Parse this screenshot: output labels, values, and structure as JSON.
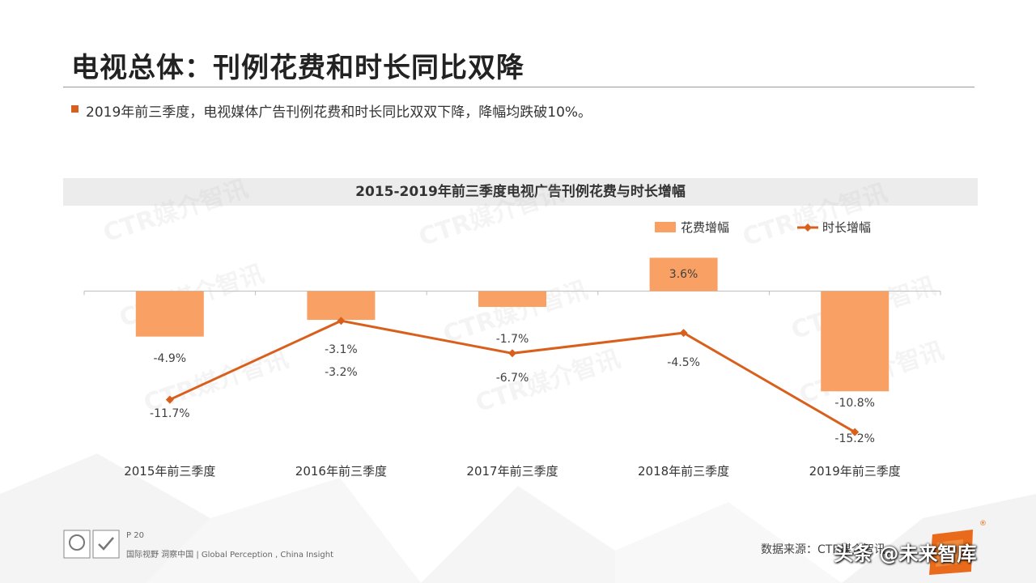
{
  "page": {
    "title": "电视总体：刊例花费和时长同比双降",
    "bullet": "2019年前三季度，电视媒体广告刊例花费和时长同比双双下降，降幅均跌破10%。"
  },
  "chart_data": {
    "type": "bar",
    "title": "2015-2019年前三季度电视广告刊例花费与时长增幅",
    "categories": [
      "2015年前三季度",
      "2016年前三季度",
      "2017年前三季度",
      "2018年前三季度",
      "2019年前三季度"
    ],
    "series": [
      {
        "name": "花费增幅",
        "type": "bar",
        "color": "#f9a165",
        "values": [
          -4.9,
          -3.1,
          -1.7,
          3.6,
          -10.8
        ],
        "labels": [
          "-4.9%",
          "-3.1%",
          "-1.7%",
          "3.6%",
          "-10.8%"
        ]
      },
      {
        "name": "时长增幅",
        "type": "line",
        "color": "#d9601c",
        "values": [
          -11.7,
          -3.2,
          -6.7,
          -4.5,
          -15.2
        ],
        "labels": [
          "-11.7%",
          "-3.2%",
          "-6.7%",
          "-4.5%",
          "-15.2%"
        ]
      }
    ],
    "ylim": [
      -17.5,
      5.2
    ],
    "legend": "top-right",
    "grid": false
  },
  "watermark": {
    "text": "CTR媒介智讯"
  },
  "footer": {
    "page_number": "P 20",
    "tagline": "国际视野  洞察中国 |  Global Perception , China Insight",
    "source": "数据来源：CTR媒介智讯",
    "overlay": "头条 @未来智库"
  },
  "colors": {
    "accent": "#d9601c",
    "bar": "#f9a165",
    "header_bg": "#ececec"
  }
}
